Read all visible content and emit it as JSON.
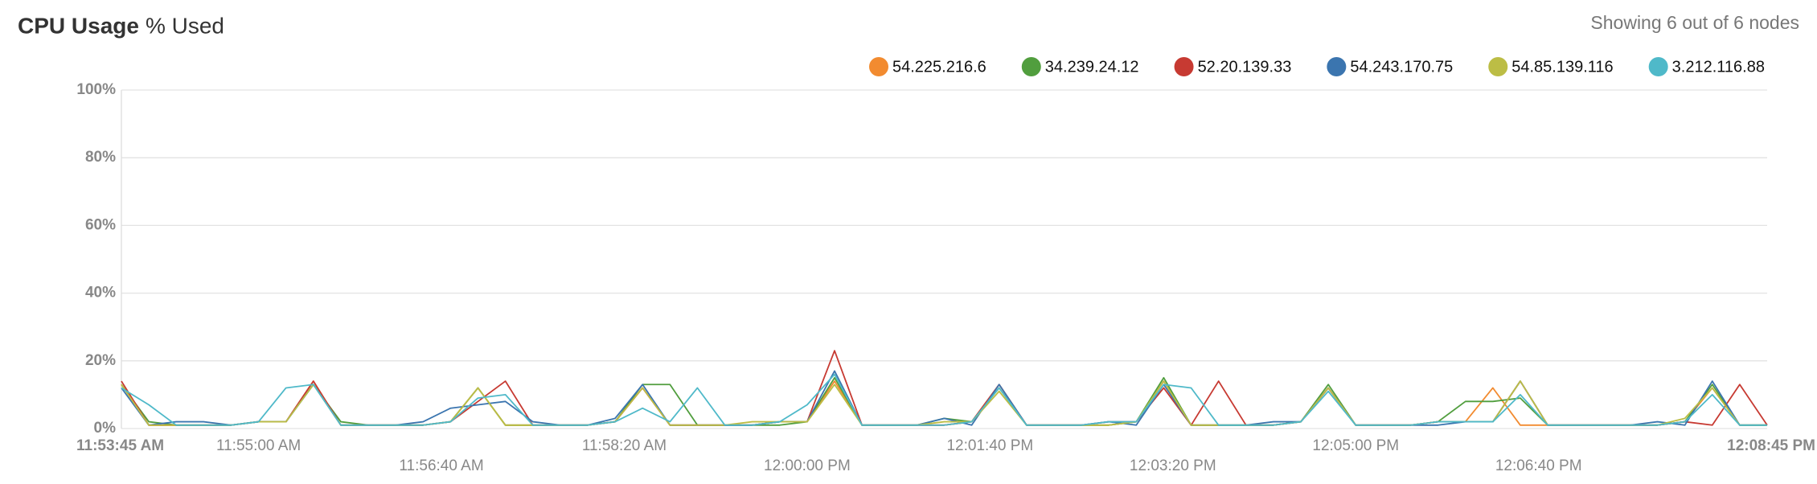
{
  "chart_data": {
    "type": "line",
    "title": "CPU Usage",
    "subtitle": "% Used",
    "annotation": "Showing 6 out of 6 nodes",
    "grid": true,
    "legend": "top",
    "x": [
      "11:53:45 AM",
      "11:54:00 AM",
      "11:54:15 AM",
      "11:54:30 AM",
      "11:54:45 AM",
      "11:55:00 AM",
      "11:55:15 AM",
      "11:55:30 AM",
      "11:55:45 AM",
      "11:56:00 AM",
      "11:56:15 AM",
      "11:56:30 AM",
      "11:56:45 AM",
      "11:57:00 AM",
      "11:57:15 AM",
      "11:57:30 AM",
      "11:57:45 AM",
      "11:58:00 AM",
      "11:58:15 AM",
      "11:58:30 AM",
      "11:58:45 AM",
      "11:59:00 AM",
      "11:59:15 AM",
      "11:59:30 AM",
      "11:59:45 AM",
      "12:00:00 PM",
      "12:00:15 PM",
      "12:00:30 PM",
      "12:00:45 PM",
      "12:01:00 PM",
      "12:01:15 PM",
      "12:01:30 PM",
      "12:01:45 PM",
      "12:02:00 PM",
      "12:02:15 PM",
      "12:02:30 PM",
      "12:02:45 PM",
      "12:03:00 PM",
      "12:03:15 PM",
      "12:03:30 PM",
      "12:03:45 PM",
      "12:04:00 PM",
      "12:04:15 PM",
      "12:04:30 PM",
      "12:04:45 PM",
      "12:05:00 PM",
      "12:05:15 PM",
      "12:05:30 PM",
      "12:05:45 PM",
      "12:06:00 PM",
      "12:06:15 PM",
      "12:06:30 PM",
      "12:06:45 PM",
      "12:07:00 PM",
      "12:07:15 PM",
      "12:07:30 PM",
      "12:07:45 PM",
      "12:08:00 PM",
      "12:08:15 PM",
      "12:08:30 PM",
      "12:08:45 PM"
    ],
    "xlim": [
      "11:53:45 AM",
      "12:08:45 PM"
    ],
    "xticks": [
      "11:53:45 AM",
      "11:55:00 AM",
      "11:56:40 AM",
      "11:58:20 AM",
      "12:00:00 PM",
      "12:01:40 PM",
      "12:03:20 PM",
      "12:05:00 PM",
      "12:06:40 PM",
      "12:08:45 PM"
    ],
    "ylim": [
      0,
      100
    ],
    "yticks": [
      {
        "value": 0,
        "label": "0%"
      },
      {
        "value": 20,
        "label": "20%"
      },
      {
        "value": 40,
        "label": "40%"
      },
      {
        "value": 60,
        "label": "60%"
      },
      {
        "value": 80,
        "label": "80%"
      },
      {
        "value": 100,
        "label": "100%"
      }
    ],
    "series": [
      {
        "name": "54.225.216.6",
        "color": "#f28b30",
        "values": [
          13,
          1,
          1,
          1,
          1,
          2,
          2,
          14,
          1,
          1,
          1,
          1,
          2,
          12,
          1,
          1,
          1,
          1,
          2,
          12,
          1,
          1,
          1,
          1,
          2,
          2,
          14,
          1,
          1,
          1,
          1,
          2,
          13,
          1,
          1,
          1,
          1,
          2,
          14,
          1,
          1,
          1,
          1,
          2,
          12,
          1,
          1,
          1,
          2,
          2,
          12,
          1,
          1,
          1,
          1,
          1,
          1,
          2,
          12,
          1,
          1
        ]
      },
      {
        "name": "34.239.24.12",
        "color": "#519e3e",
        "values": [
          13,
          2,
          1,
          1,
          1,
          2,
          2,
          13,
          2,
          1,
          1,
          1,
          2,
          12,
          1,
          1,
          1,
          1,
          2,
          13,
          13,
          1,
          1,
          1,
          1,
          2,
          15,
          1,
          1,
          1,
          3,
          2,
          12,
          1,
          1,
          1,
          1,
          2,
          15,
          1,
          1,
          1,
          1,
          2,
          13,
          1,
          1,
          1,
          2,
          8,
          8,
          9,
          1,
          1,
          1,
          1,
          1,
          2,
          13,
          1,
          1
        ]
      },
      {
        "name": "52.20.139.33",
        "color": "#c73a32",
        "values": [
          14,
          1,
          1,
          1,
          1,
          2,
          2,
          14,
          1,
          1,
          1,
          1,
          2,
          8,
          14,
          1,
          1,
          1,
          2,
          12,
          1,
          1,
          1,
          1,
          2,
          2,
          23,
          1,
          1,
          1,
          1,
          2,
          13,
          1,
          1,
          1,
          2,
          2,
          12,
          1,
          14,
          1,
          1,
          2,
          12,
          1,
          1,
          1,
          2,
          2,
          2,
          14,
          1,
          1,
          1,
          1,
          1,
          2,
          1,
          13,
          1
        ]
      },
      {
        "name": "54.243.170.75",
        "color": "#3b75af",
        "values": [
          12,
          1,
          2,
          2,
          1,
          2,
          2,
          13,
          1,
          1,
          1,
          2,
          6,
          7,
          8,
          2,
          1,
          1,
          3,
          13,
          1,
          1,
          1,
          1,
          2,
          2,
          17,
          1,
          1,
          1,
          3,
          1,
          13,
          1,
          1,
          1,
          2,
          1,
          13,
          1,
          1,
          1,
          2,
          2,
          12,
          1,
          1,
          1,
          1,
          2,
          2,
          14,
          1,
          1,
          1,
          1,
          2,
          1,
          14,
          1,
          1
        ]
      },
      {
        "name": "54.85.139.116",
        "color": "#bcbd45",
        "values": [
          13,
          1,
          1,
          1,
          1,
          2,
          2,
          13,
          1,
          1,
          1,
          1,
          2,
          12,
          1,
          1,
          1,
          1,
          2,
          12,
          1,
          1,
          1,
          2,
          2,
          2,
          13,
          1,
          1,
          1,
          2,
          2,
          11,
          1,
          1,
          1,
          1,
          2,
          14,
          1,
          1,
          1,
          1,
          2,
          12,
          1,
          1,
          1,
          2,
          2,
          2,
          14,
          1,
          1,
          1,
          1,
          1,
          3,
          12,
          1,
          1
        ]
      },
      {
        "name": "3.212.116.88",
        "color": "#4fb9c9",
        "values": [
          12,
          7,
          1,
          1,
          1,
          2,
          12,
          13,
          1,
          1,
          1,
          1,
          2,
          9,
          10,
          1,
          1,
          1,
          2,
          6,
          2,
          12,
          1,
          1,
          2,
          7,
          16,
          1,
          1,
          1,
          1,
          2,
          12,
          1,
          1,
          1,
          2,
          2,
          13,
          12,
          1,
          1,
          1,
          2,
          11,
          1,
          1,
          1,
          2,
          2,
          2,
          10,
          1,
          1,
          1,
          1,
          1,
          2,
          10,
          1,
          1
        ]
      }
    ]
  }
}
